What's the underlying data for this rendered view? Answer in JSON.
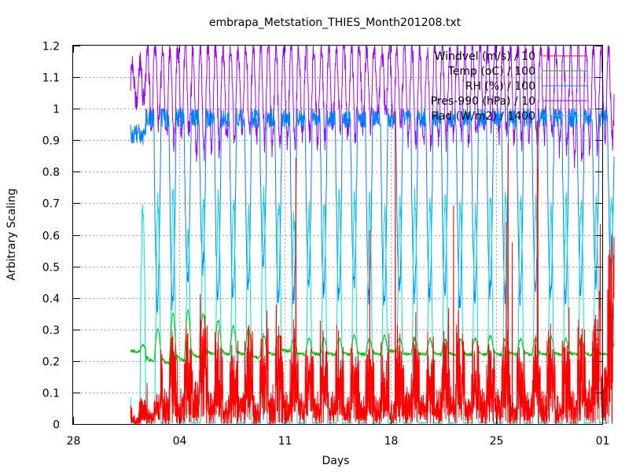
{
  "chart_data": {
    "type": "line",
    "title": "embrapa_Metstation_THIES_Month201208.txt",
    "xlabel": "Days",
    "ylabel": "Arbitrary Scaling",
    "xlim": [
      "2012-07-28",
      "2012-09-01"
    ],
    "ylim": [
      0,
      1.2
    ],
    "x_tick_labels": [
      "28",
      "04",
      "11",
      "18",
      "25",
      "01"
    ],
    "x_tick_dates": [
      "2012-07-28",
      "2012-08-04",
      "2012-08-11",
      "2012-08-18",
      "2012-08-25",
      "2012-09-01"
    ],
    "y_tick_labels": [
      "0",
      "0.1",
      "0.2",
      "0.3",
      "0.4",
      "0.5",
      "0.6",
      "0.7",
      "0.8",
      "0.9",
      "1",
      "1.1",
      "1.2"
    ],
    "grid": true,
    "legend_position": "top-right",
    "series": [
      {
        "name": "Windvel (m/s) / 10",
        "color": "#ff0000",
        "style": "noisy daily series, typical 0 to 0.15 with peaks 0.3 to 0.6, extreme spikes to about 1.0",
        "daily_peaks": [
          0.1,
          0.15,
          0.38,
          0.35,
          0.45,
          0.35,
          0.3,
          0.35,
          0.32,
          0.4,
          0.35,
          0.3,
          0.35,
          0.33,
          0.3,
          0.35,
          0.28,
          0.32,
          0.38,
          0.3,
          0.35,
          0.4,
          0.3,
          0.33,
          0.35,
          0.3,
          0.32,
          0.35,
          0.3,
          0.38,
          0.45,
          0.75
        ]
      },
      {
        "name": "Temp (oC) / 100",
        "color": "#00c000",
        "daily_min": [
          0.23,
          0.2,
          0.19,
          0.2,
          0.21,
          0.22,
          0.22,
          0.22,
          0.21,
          0.22,
          0.23,
          0.22,
          0.22,
          0.22,
          0.22,
          0.22,
          0.22,
          0.23,
          0.22,
          0.22,
          0.22,
          0.22,
          0.22,
          0.22,
          0.22,
          0.22,
          0.22,
          0.22,
          0.22,
          0.22,
          0.22,
          0.22
        ],
        "daily_max": [
          0.25,
          0.3,
          0.35,
          0.36,
          0.35,
          0.33,
          0.31,
          0.3,
          0.28,
          0.28,
          0.27,
          0.27,
          0.27,
          0.27,
          0.28,
          0.27,
          0.28,
          0.27,
          0.27,
          0.27,
          0.27,
          0.27,
          0.27,
          0.28,
          0.27,
          0.27,
          0.27,
          0.28,
          0.27,
          0.27,
          0.27,
          0.27
        ]
      },
      {
        "name": "RH (%) / 100",
        "color": "#0080ff",
        "daily_min": [
          0.9,
          0.38,
          0.37,
          0.45,
          0.5,
          0.4,
          0.4,
          0.45,
          0.5,
          0.4,
          0.4,
          0.45,
          0.42,
          0.4,
          0.45,
          0.4,
          0.38,
          0.42,
          0.4,
          0.4,
          0.42,
          0.38,
          0.4,
          0.42,
          0.4,
          0.4,
          0.42,
          0.4,
          0.4,
          0.42,
          0.45,
          0.5
        ],
        "daily_max": [
          0.95,
          1.0,
          1.0,
          1.0,
          1.0,
          1.0,
          1.0,
          1.0,
          1.0,
          1.0,
          1.0,
          1.0,
          1.0,
          1.0,
          1.0,
          1.0,
          1.0,
          1.0,
          1.0,
          1.0,
          1.0,
          1.0,
          1.0,
          1.0,
          1.0,
          1.0,
          1.0,
          1.0,
          1.0,
          1.0,
          1.0,
          1.0
        ]
      },
      {
        "name": "Pres-990 (hPa) / 10",
        "color": "#a000ff",
        "daily_min": [
          1.02,
          0.95,
          0.9,
          0.92,
          0.85,
          0.88,
          0.9,
          0.92,
          0.9,
          0.88,
          0.9,
          0.92,
          0.9,
          0.95,
          0.92,
          0.95,
          0.98,
          0.95,
          0.9,
          0.88,
          0.9,
          0.92,
          0.9,
          0.95,
          0.92,
          0.9,
          0.9,
          0.92,
          0.88,
          0.85,
          0.88,
          0.9
        ],
        "daily_max": [
          1.15,
          1.2,
          1.2,
          1.2,
          1.2,
          1.2,
          1.2,
          1.2,
          1.2,
          1.2,
          1.2,
          1.2,
          1.2,
          1.2,
          1.2,
          1.2,
          1.2,
          1.2,
          1.2,
          1.2,
          1.2,
          1.2,
          1.2,
          1.2,
          1.2,
          1.2,
          1.2,
          1.2,
          1.2,
          1.2,
          1.2,
          1.2
        ]
      },
      {
        "name": "Rad (W/m2) / 1400",
        "color": "#00e0e0",
        "daily_peaks": [
          0.7,
          0.7,
          0.72,
          0.6,
          0.7,
          0.72,
          0.7,
          0.68,
          0.72,
          0.7,
          0.65,
          0.68,
          0.7,
          0.72,
          0.72,
          0.7,
          0.68,
          0.7,
          0.72,
          0.7,
          0.72,
          0.7,
          0.68,
          0.7,
          0.72,
          0.72,
          0.7,
          0.68,
          0.7,
          0.72,
          0.7,
          0.72
        ]
      }
    ]
  }
}
